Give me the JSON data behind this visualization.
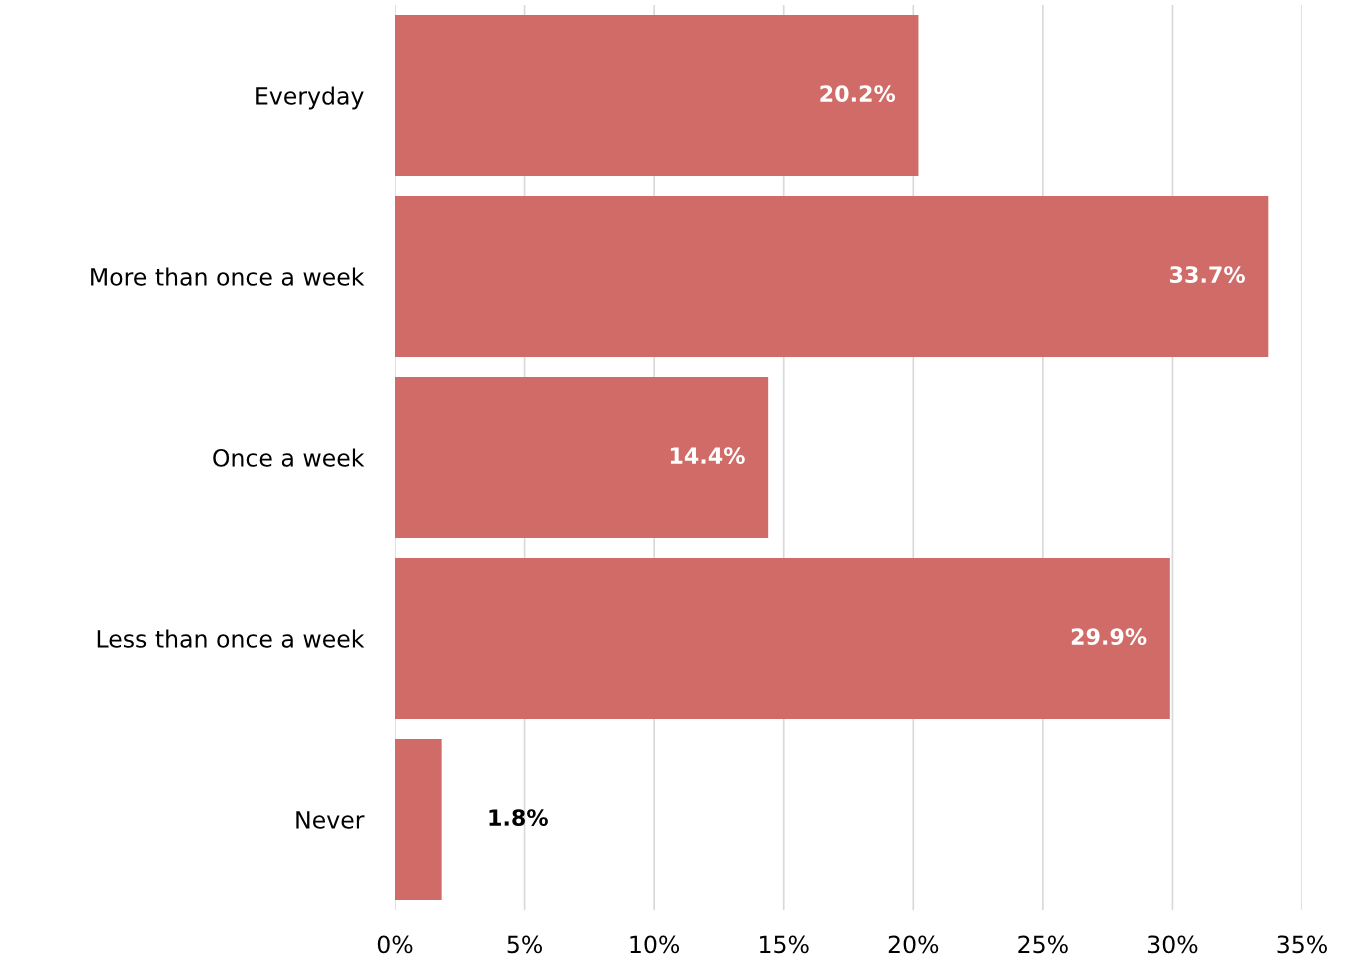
{
  "chart_data": {
    "type": "bar",
    "orientation": "horizontal",
    "categories": [
      "Everyday",
      "More than once a week",
      "Once a week",
      "Less than once a week",
      "Never"
    ],
    "values": [
      20.2,
      33.7,
      14.4,
      29.9,
      1.8
    ],
    "value_labels": [
      "20.2%",
      "33.7%",
      "14.4%",
      "29.9%",
      "1.8%"
    ],
    "color": "#d06b67",
    "xlim": [
      0,
      35
    ],
    "xticks": [
      {
        "value": 0,
        "label": "0%"
      },
      {
        "value": 5,
        "label": "5%"
      },
      {
        "value": 10,
        "label": "10%"
      },
      {
        "value": 15,
        "label": "15%"
      },
      {
        "value": 20,
        "label": "20%"
      },
      {
        "value": 25,
        "label": "25%"
      },
      {
        "value": 30,
        "label": "30%"
      },
      {
        "value": 35,
        "label": "35%"
      }
    ],
    "grid": "x"
  }
}
